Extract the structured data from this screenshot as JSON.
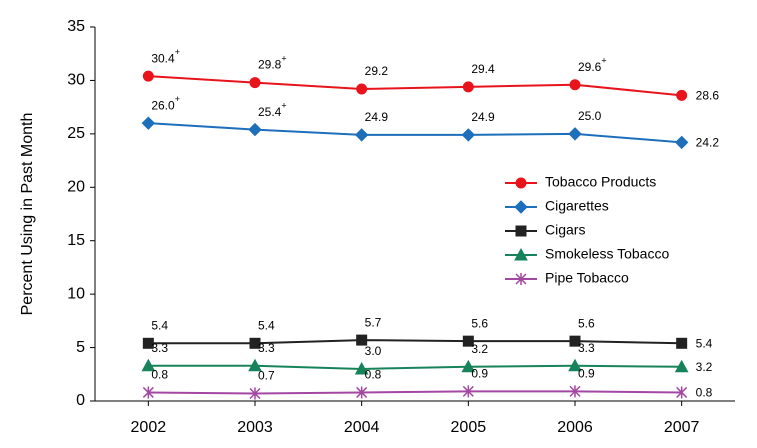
{
  "chart_data": {
    "type": "line",
    "y_label": "Percent Using in Past Month",
    "categories": [
      "2002",
      "2003",
      "2004",
      "2005",
      "2006",
      "2007"
    ],
    "ylim": [
      0,
      35
    ],
    "yticks": [
      0,
      5,
      10,
      15,
      20,
      25,
      30,
      35
    ],
    "grid": false,
    "legend": "right",
    "series": [
      {
        "name": "Tobacco Products",
        "color": "#e8141c",
        "marker": "circle",
        "values": [
          30.4,
          29.8,
          29.2,
          29.4,
          29.6,
          28.6
        ],
        "value_labels": [
          "30.4+",
          "29.8+",
          "29.2",
          "29.4",
          "29.6+",
          "28.6"
        ]
      },
      {
        "name": "Cigarettes",
        "color": "#1e6fbb",
        "marker": "diamond",
        "values": [
          26.0,
          25.4,
          24.9,
          24.9,
          25.0,
          24.2
        ],
        "value_labels": [
          "26.0+",
          "25.4+",
          "24.9",
          "24.9",
          "25.0",
          "24.2"
        ]
      },
      {
        "name": "Cigars",
        "color": "#222222",
        "marker": "square",
        "values": [
          5.4,
          5.4,
          5.7,
          5.6,
          5.6,
          5.4
        ],
        "value_labels": [
          "5.4",
          "5.4",
          "5.7",
          "5.6",
          "5.6",
          "5.4"
        ]
      },
      {
        "name": "Smokeless Tobacco",
        "color": "#17835a",
        "marker": "triangle",
        "values": [
          3.3,
          3.3,
          3.0,
          3.2,
          3.3,
          3.2
        ],
        "value_labels": [
          "3.3",
          "3.3",
          "3.0",
          "3.2",
          "3.3",
          "3.2"
        ]
      },
      {
        "name": "Pipe Tobacco",
        "color": "#a347a3",
        "marker": "asterisk",
        "values": [
          0.8,
          0.7,
          0.8,
          0.9,
          0.9,
          0.8
        ],
        "value_labels": [
          "0.8",
          "0.7",
          "0.8",
          "0.9",
          "0.9",
          "0.8"
        ]
      }
    ]
  }
}
